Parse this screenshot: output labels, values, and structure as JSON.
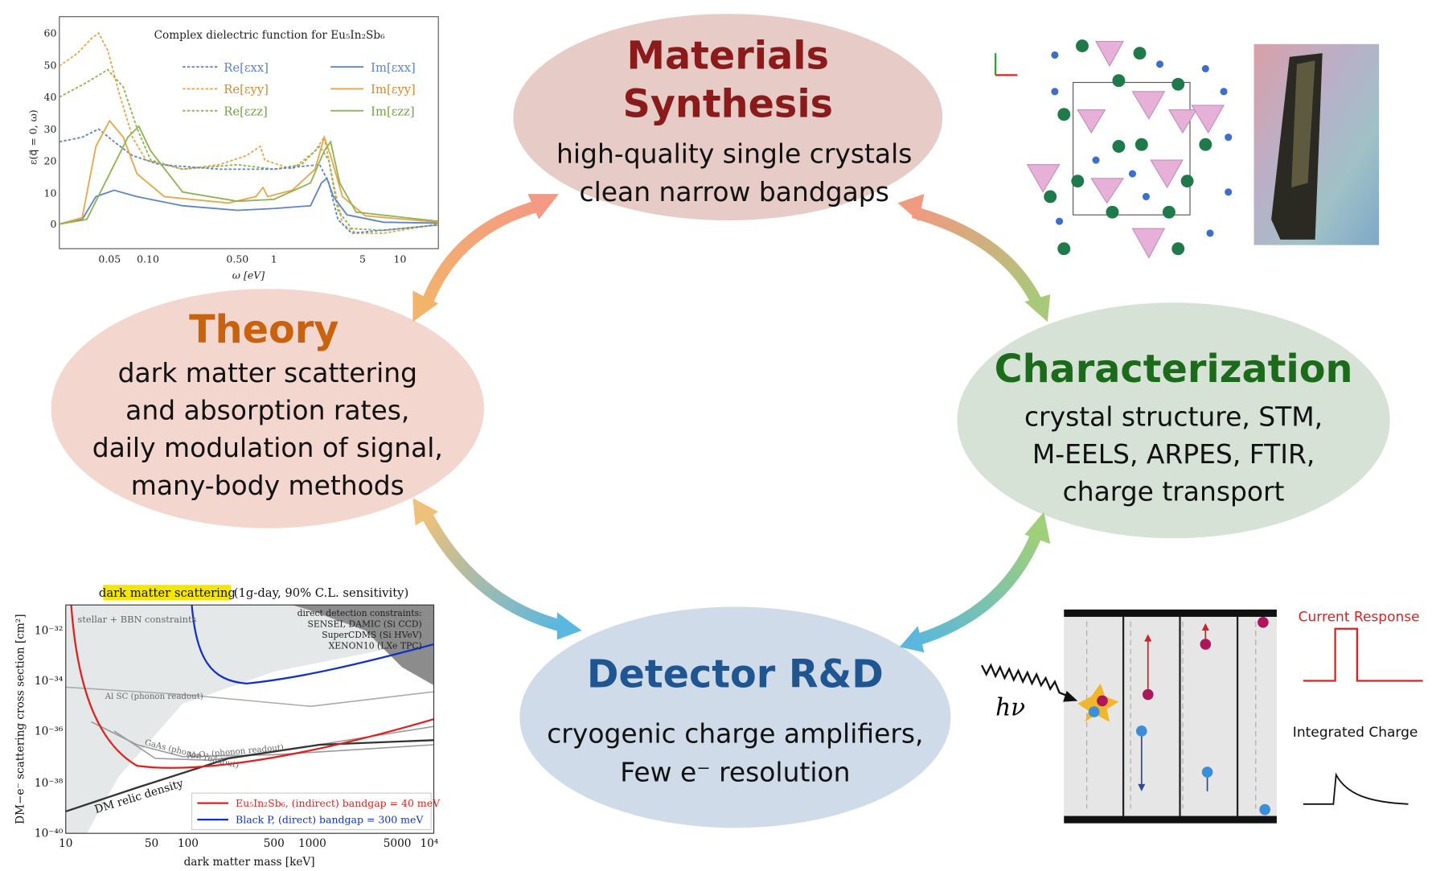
{
  "materials": {
    "title": [
      "Materials",
      "Synthesis"
    ],
    "text": [
      "high-quality single crystals",
      "clean narrow bandgaps"
    ]
  },
  "theory": {
    "title": "Theory",
    "text": [
      "dark matter scattering",
      "and absorption rates,",
      "daily modulation of signal,",
      "many-body methods"
    ]
  },
  "characterization": {
    "title": "Characterization",
    "text": [
      "crystal structure,  STM,",
      "M-EELS, ARPES, FTIR,",
      "charge transport"
    ]
  },
  "detector": {
    "title": "Detector R&D",
    "text": [
      "cryogenic charge amplifiers,",
      "Few e⁻ resolution"
    ]
  },
  "dielectric_plot": {
    "title": "Complex dielectric function for Eu₅In₂Sb₆",
    "xlabel": "ω [eV]",
    "ylabel": "ε(q⃗ = 0, ω)",
    "yticks": [
      "0",
      "10",
      "20",
      "30",
      "40",
      "50",
      "60"
    ],
    "xticks": [
      "0.05",
      "0.10",
      "0.50",
      "1",
      "5",
      "10"
    ],
    "legend": [
      "Re[εxx]",
      "Re[εyy]",
      "Re[εzz]",
      "Im[εxx]",
      "Im[εyy]",
      "Im[εzz]"
    ]
  },
  "sensitivity_plot": {
    "title_highlight": "dark matter scattering",
    "title_rest": "(1g-day, 90% C.L. sensitivity)",
    "xlabel": "dark matter mass [keV]",
    "ylabel": "DM−e⁻ scattering cross section [cm²]",
    "yticks": [
      "10⁻³²",
      "10⁻³⁴",
      "10⁻³⁶",
      "10⁻³⁸",
      "10⁻⁴⁰"
    ],
    "xticks": [
      "10",
      "50",
      "100",
      "500",
      "1000",
      "5000",
      "10⁴"
    ],
    "annotations": [
      "stellar + BBN constraints",
      "direct detection constraints:",
      "SENSEI, DAMIC (Si CCD)",
      "SuperCDMS (Si HVeV)",
      "XENON10 (LXe TPC)",
      "Al SC (phonon readout)",
      "GaAs (phonon readout)",
      "Al₂O₃ (phonon readout)",
      "DM relic density"
    ],
    "legend": [
      "Eu₅In₂Sb₆, (indirect) bandgap = 40 meV",
      "Black P, (direct) bandgap = 300 meV"
    ]
  },
  "detector_panel": {
    "photon": "hν",
    "current": "Current Response",
    "charge": "Integrated Charge"
  }
}
